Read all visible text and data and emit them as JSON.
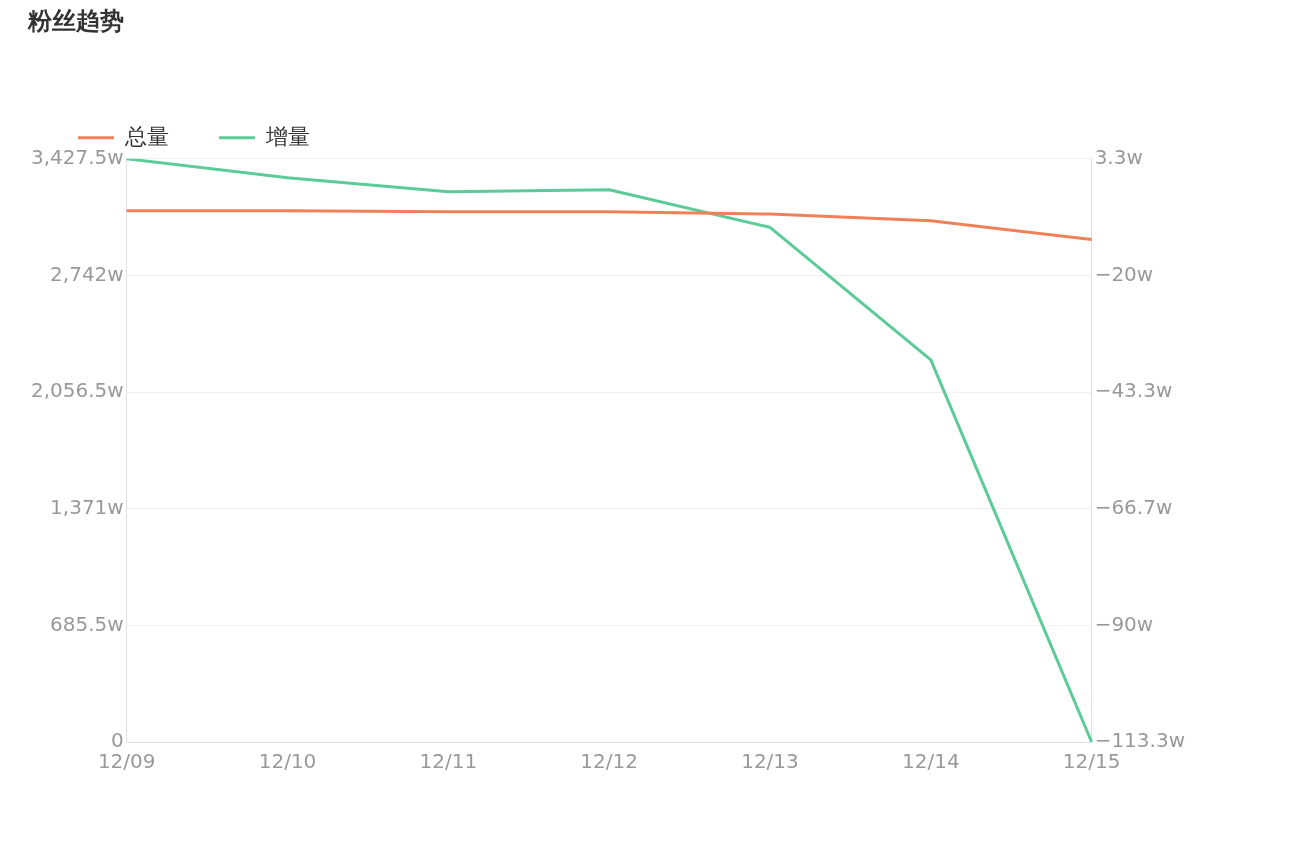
{
  "chart_data": {
    "type": "line",
    "title": "粉丝趋势",
    "categories": [
      "12/09",
      "12/10",
      "12/11",
      "12/12",
      "12/13",
      "12/14",
      "12/15"
    ],
    "series": [
      {
        "name": "总量",
        "color": "#f08058",
        "values": [
          3122,
          3122,
          3116,
          3116,
          3103,
          3064,
          2953
        ]
      },
      {
        "name": "增量",
        "color": "#5bcb98",
        "axis": "y2",
        "values": [
          3.3,
          -0.5,
          -3.3,
          -2.9,
          -10.4,
          -36.9,
          -113.3
        ]
      }
    ],
    "ylim": [
      0,
      3427.5
    ],
    "yticks": [
      {
        "value": 0,
        "label": "0"
      },
      {
        "value": 685.5,
        "label": "685.5w"
      },
      {
        "value": 1371,
        "label": "1,371w"
      },
      {
        "value": 2056.5,
        "label": "2,056.5w"
      },
      {
        "value": 2742,
        "label": "2,742w"
      },
      {
        "value": 3427.5,
        "label": "3,427.5w"
      }
    ],
    "y2lim": [
      -113.3,
      3.3
    ],
    "y2ticks": [
      {
        "value": -113.3,
        "label": "−113.3w"
      },
      {
        "value": -90,
        "label": "−90w"
      },
      {
        "value": -66.7,
        "label": "−66.7w"
      },
      {
        "value": -43.3,
        "label": "−43.3w"
      },
      {
        "value": -20,
        "label": "−20w"
      },
      {
        "value": 3.3,
        "label": "3.3w"
      }
    ],
    "grid": "y",
    "legend": "top left",
    "line_style": "solid"
  }
}
